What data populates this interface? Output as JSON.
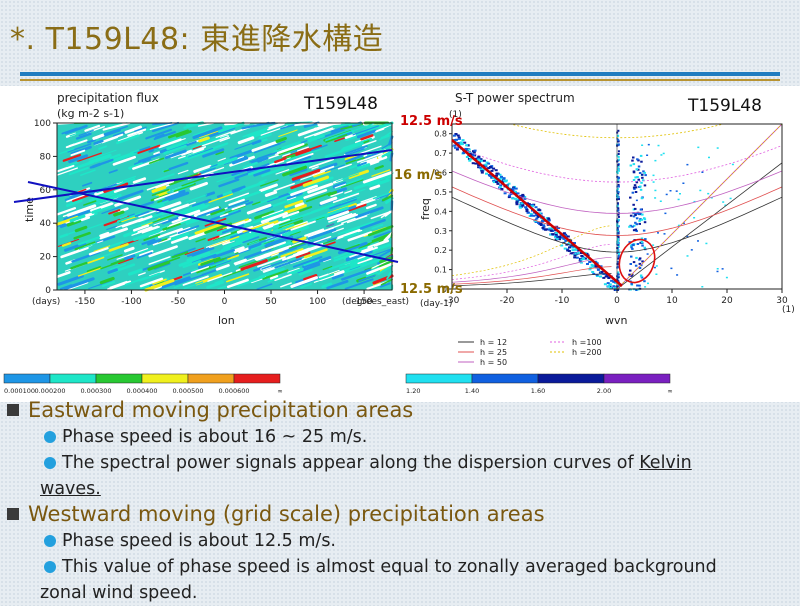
{
  "slide": {
    "title": "*. T159L48: 東進降水構造"
  },
  "figure": {
    "left_panel": {
      "run_label": "T159L48",
      "plot_title": "precipitation flux",
      "units": "(kg m-2 s-1)",
      "ylabel": "time",
      "xlabel": "lon",
      "y_unit": "(days)",
      "x_unit": "(degrees_east)",
      "yticks": [
        "0",
        "20",
        "40",
        "60",
        "80",
        "100"
      ],
      "xticks": [
        "-150",
        "-100",
        "-50",
        "0",
        "50",
        "100",
        "150"
      ],
      "colorbar_ticks": [
        "0.000100",
        "0.000200",
        "0.000300",
        "0.000400",
        "0.000500",
        "0.000600",
        "∞"
      ],
      "colorbar_colors": [
        "#1e96e6",
        "#1ee6c8",
        "#28c832",
        "#f0f01e",
        "#f0a01e",
        "#e61e1e"
      ]
    },
    "right_panel": {
      "run_label": "T159L48",
      "plot_title": "S-T power spectrum",
      "top_unit": "(1)",
      "ylabel": "freq",
      "xlabel": "wvn",
      "x_unit_right": "(1)",
      "freq_unit": "(day-1)",
      "yticks": [
        "0",
        "0.1",
        "0.2",
        "0.3",
        "0.4",
        "0.5",
        "0.6",
        "0.7",
        "0.8"
      ],
      "xticks": [
        "-30",
        "-20",
        "-10",
        "0",
        "10",
        "20",
        "30"
      ],
      "legend": [
        {
          "label": "h = 12",
          "color": "#333333",
          "style": "solid"
        },
        {
          "label": "h = 25",
          "color": "#e05050",
          "style": "solid"
        },
        {
          "label": "h = 50",
          "color": "#c060c0",
          "style": "solid"
        },
        {
          "label": "h =100",
          "color": "#e060e0",
          "style": "dotted"
        },
        {
          "label": "h =200",
          "color": "#e0c000",
          "style": "dotted"
        }
      ],
      "colorbar_ticks": [
        "1.20",
        "1.40",
        "1.60",
        "2.00",
        "∞"
      ],
      "colorbar_colors": [
        "#20e0f0",
        "#1060e0",
        "#0a1a9a",
        "#7a20c0"
      ]
    },
    "annotations": {
      "speed_top": "12.5 m/s",
      "speed_mid": "16 m/s",
      "speed_bottom": "12.5 m/s",
      "annotation_color": "#cc0000",
      "annotation_color_alt": "#8a6a00",
      "line_color": "#1010c0"
    }
  },
  "bullets": [
    {
      "heading": "Eastward moving precipitation areas",
      "items": [
        {
          "text": "Phase speed is about 16 ~ 25 m/s."
        },
        {
          "text_before": "The spectral power signals appear along the dispersion curves of ",
          "link_text": "Kelvin",
          "wrap_text": "waves."
        }
      ]
    },
    {
      "heading": "Westward moving (grid scale) precipitation areas",
      "items": [
        {
          "text": "Phase speed is about 12.5 m/s."
        },
        {
          "text": "This value of phase speed is almost equal to zonally averaged background",
          "wrap_text": "zonal wind speed."
        }
      ]
    }
  ]
}
